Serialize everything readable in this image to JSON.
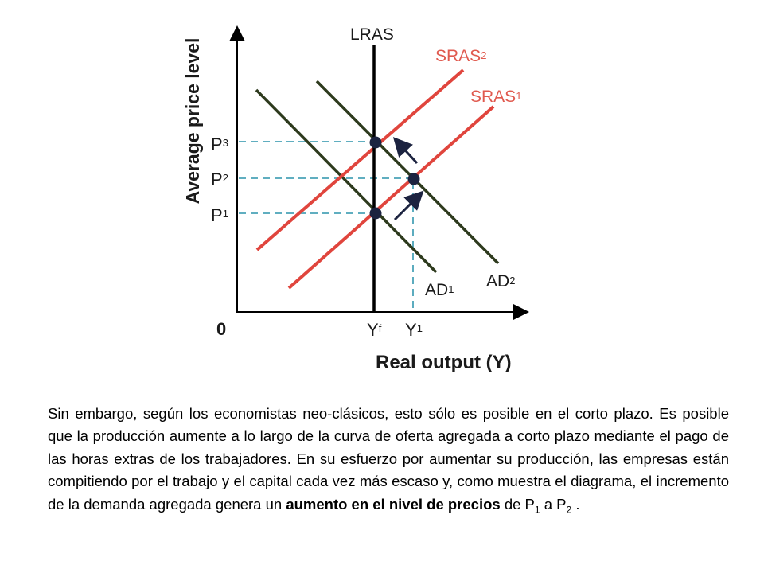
{
  "diagram": {
    "y_axis_label": "Average price level",
    "x_axis_label": "Real output (Y)",
    "origin_label": "0",
    "price_labels": {
      "p1": "P",
      "p1_sub": "1",
      "p2": "P",
      "p2_sub": "2",
      "p3": "P",
      "p3_sub": "3"
    },
    "output_labels": {
      "yf": "Y",
      "yf_sub": "f",
      "y1": "Y",
      "y1_sub": "1"
    },
    "curves": {
      "lras": "LRAS",
      "sras1": "SRAS",
      "sras1_sub": "1",
      "sras2": "SRAS",
      "sras2_sub": "2",
      "ad1": "AD",
      "ad1_sub": "1",
      "ad2": "AD",
      "ad2_sub": "2"
    },
    "colors": {
      "sras": "#e0453d",
      "ad": "#2d3a1d",
      "lras": "#000000",
      "guides": "#4aa3b8",
      "points": "#1c2340"
    }
  },
  "text": {
    "part1": "Sin embargo, según los economistas neo-clásicos, esto sólo es posible en el corto plazo. Es posible que la producción aumente a lo largo de la curva de oferta agregada a corto plazo mediante el pago de las horas extras de los trabajadores. En su esfuerzo por aumentar su producción, las empresas están compitiendo por el trabajo y el capital cada vez más escaso y, como muestra el diagrama, el incremento de la demanda agregada genera un ",
    "bold": "aumento en el nivel de precios",
    "part2": " de P",
    "sub1": "1",
    "part3": " a P",
    "sub2": "2",
    "part4": " ."
  }
}
